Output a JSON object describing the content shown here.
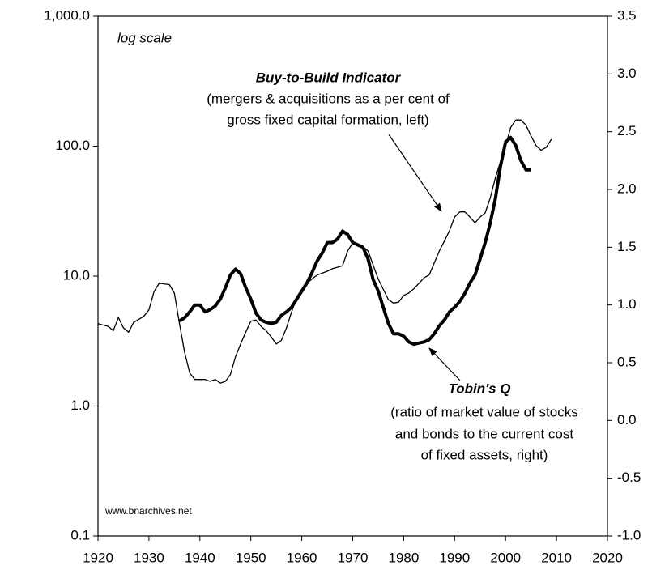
{
  "chart_data": {
    "type": "line",
    "ylog": true,
    "ylim": [
      0.1,
      1000
    ],
    "yticks": [
      {
        "value": 0.1,
        "label": "0.1"
      },
      {
        "value": 1,
        "label": "1.0"
      },
      {
        "value": 10,
        "label": "10.0"
      },
      {
        "value": 100,
        "label": "100.0"
      },
      {
        "value": 1000,
        "label": "1,000.0"
      }
    ],
    "y2lim": [
      -1,
      3.5
    ],
    "y2ticks": [
      {
        "value": -1,
        "label": "-1.0"
      },
      -0.5,
      {
        "value": 0,
        "label": "0.0"
      },
      0.5,
      {
        "value": 1,
        "label": "1.0"
      },
      1.5,
      {
        "value": 2,
        "label": "2.0"
      },
      2.5,
      {
        "value": 3,
        "label": "3.0"
      },
      3.5
    ],
    "xlim": [
      1920,
      2020
    ],
    "xticks": [
      1920,
      1930,
      1940,
      1950,
      1960,
      1970,
      1980,
      1990,
      2000,
      2010,
      2020
    ],
    "scale_note": "log scale",
    "source": "www.bnarchives.net",
    "series": [
      {
        "name": "Buy-to-Build Indicator",
        "color": "#000000",
        "width": 1.3,
        "description": [
          "(mergers & acquisitions as a per cent of",
          "gross fixed capital formation, left)"
        ],
        "x": [
          1920,
          1922,
          1923,
          1924,
          1925,
          1926,
          1927,
          1929,
          1930,
          1931,
          1932,
          1934,
          1935,
          1936,
          1937,
          1938,
          1939,
          1941,
          1942,
          1943,
          1944,
          1945,
          1946,
          1947,
          1948,
          1949,
          1950,
          1951,
          1952,
          1953,
          1954,
          1955,
          1956,
          1957,
          1958,
          1959,
          1960,
          1961,
          1962,
          1963,
          1965,
          1966,
          1967,
          1968,
          1969,
          1970,
          1971,
          1972,
          1973,
          1975,
          1977,
          1978,
          1979,
          1980,
          1981,
          1982,
          1983,
          1984,
          1985,
          1986,
          1987,
          1988,
          1989,
          1990,
          1991,
          1992,
          1993,
          1994,
          1995,
          1996,
          1997,
          1998,
          1999,
          2000,
          2001,
          2002,
          2003,
          2004,
          2005,
          2006,
          2007,
          2008,
          2009
        ],
        "values": [
          4.3,
          4.1,
          3.8,
          4.8,
          4.0,
          3.7,
          4.4,
          4.9,
          5.5,
          7.6,
          8.8,
          8.6,
          7.4,
          4.3,
          2.6,
          1.8,
          1.6,
          1.6,
          1.55,
          1.6,
          1.5,
          1.55,
          1.75,
          2.4,
          3.0,
          3.7,
          4.5,
          4.6,
          4.1,
          3.8,
          3.4,
          3.0,
          3.2,
          4.0,
          5.3,
          6.8,
          7.6,
          8.8,
          9.5,
          10.2,
          10.9,
          11.4,
          11.7,
          12.0,
          15.6,
          18,
          17.6,
          16.8,
          15.6,
          9.5,
          6.6,
          6.2,
          6.3,
          7.1,
          7.4,
          8.0,
          8.8,
          9.7,
          10.2,
          12.6,
          15.6,
          18.6,
          22.4,
          28.5,
          31.2,
          31.2,
          28.5,
          25.7,
          28.5,
          30.6,
          40,
          57,
          76,
          101,
          139,
          159,
          159,
          145,
          120,
          101,
          93,
          98,
          113
        ]
      },
      {
        "name": "Tobin's Q",
        "color": "#000000",
        "width": 4,
        "axis": "y2",
        "description": [
          "(ratio of market value of stocks",
          "and bonds to the current cost",
          "of fixed assets, right)"
        ],
        "x": [
          1936,
          1937,
          1938,
          1939,
          1940,
          1941,
          1942,
          1943,
          1944,
          1945,
          1946,
          1947,
          1948,
          1949,
          1950,
          1951,
          1952,
          1953,
          1954,
          1955,
          1956,
          1957,
          1958,
          1959,
          1960,
          1961,
          1962,
          1963,
          1964,
          1965,
          1966,
          1967,
          1968,
          1969,
          1970,
          1971,
          1972,
          1973,
          1974,
          1975,
          1976,
          1977,
          1978,
          1979,
          1980,
          1981,
          1982,
          1983,
          1984,
          1985,
          1986,
          1987,
          1988,
          1989,
          1990,
          1991,
          1992,
          1993,
          1994,
          1995,
          1996,
          1997,
          1998,
          1999,
          2000,
          2001,
          2002,
          2003,
          2004,
          2005
        ],
        "values": [
          0.86,
          0.89,
          0.94,
          1.0,
          1.0,
          0.94,
          0.96,
          0.99,
          1.05,
          1.15,
          1.26,
          1.31,
          1.27,
          1.15,
          1.05,
          0.93,
          0.87,
          0.85,
          0.84,
          0.85,
          0.91,
          0.94,
          0.98,
          1.05,
          1.12,
          1.19,
          1.28,
          1.38,
          1.45,
          1.54,
          1.54,
          1.57,
          1.64,
          1.61,
          1.54,
          1.52,
          1.5,
          1.4,
          1.22,
          1.12,
          0.98,
          0.84,
          0.75,
          0.75,
          0.73,
          0.68,
          0.66,
          0.67,
          0.68,
          0.7,
          0.75,
          0.82,
          0.87,
          0.94,
          0.98,
          1.03,
          1.1,
          1.19,
          1.26,
          1.4,
          1.54,
          1.71,
          1.92,
          2.2,
          2.41,
          2.45,
          2.38,
          2.25,
          2.17,
          2.17
        ]
      }
    ]
  }
}
